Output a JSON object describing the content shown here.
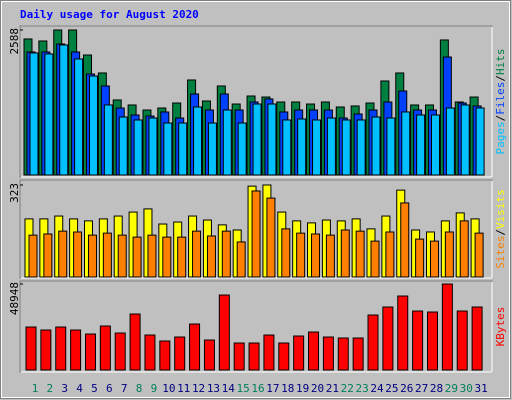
{
  "title": "Daily usage for August 2020",
  "legend_separator": "/",
  "chart_data": [
    {
      "type": "bar",
      "ylim": [
        0,
        2588
      ],
      "yticks": [
        2588
      ],
      "series": [
        {
          "name": "Hits",
          "color": "#008040",
          "values": [
            2428,
            2392,
            2588,
            2588,
            2142,
            1821,
            1339,
            1250,
            1160,
            1196,
            1285,
            1696,
            1321,
            1589,
            1267,
            1410,
            1392,
            1303,
            1303,
            1267,
            1303,
            1214,
            1232,
            1285,
            1678,
            1821,
            1250,
            1250,
            2410,
            1303,
            1392
          ]
        },
        {
          "name": "Files",
          "color": "#0040ff",
          "values": [
            2196,
            2196,
            2338,
            2196,
            1803,
            1589,
            1196,
            1071,
            1053,
            1125,
            1017,
            1446,
            1160,
            1446,
            1160,
            1303,
            1357,
            1125,
            1160,
            1160,
            1160,
            1017,
            1089,
            1160,
            1303,
            1499,
            1160,
            1160,
            2106,
            1285,
            1232
          ]
        },
        {
          "name": "Pages",
          "color": "#00c0ff",
          "values": [
            2178,
            2160,
            2321,
            2071,
            1767,
            1250,
            1035,
            982,
            1017,
            928,
            928,
            1214,
            928,
            1160,
            928,
            1267,
            1267,
            982,
            1000,
            982,
            1017,
            982,
            982,
            1035,
            1017,
            1125,
            1071,
            1071,
            1196,
            1250,
            1196
          ]
        }
      ]
    },
    {
      "type": "bar",
      "ylim": [
        0,
        323
      ],
      "yticks": [
        323
      ],
      "series": [
        {
          "name": "Visits",
          "color": "#ffff00",
          "values": [
            204,
            204,
            214,
            204,
            197,
            204,
            214,
            228,
            239,
            186,
            193,
            214,
            200,
            183,
            165,
            319,
            323,
            228,
            197,
            190,
            200,
            197,
            204,
            169,
            214,
            305,
            165,
            158,
            197,
            225,
            204
          ]
        },
        {
          "name": "Sites",
          "color": "#ff8000",
          "values": [
            147,
            151,
            161,
            158,
            147,
            154,
            147,
            140,
            147,
            140,
            140,
            161,
            144,
            161,
            123,
            302,
            277,
            169,
            154,
            151,
            147,
            165,
            161,
            126,
            158,
            260,
            133,
            126,
            158,
            197,
            154
          ]
        }
      ]
    },
    {
      "type": "bar",
      "ylim": [
        0,
        48948
      ],
      "yticks": [
        48948
      ],
      "categories": [
        "1",
        "2",
        "3",
        "4",
        "5",
        "6",
        "7",
        "8",
        "9",
        "10",
        "11",
        "12",
        "13",
        "14",
        "15",
        "16",
        "17",
        "18",
        "19",
        "20",
        "21",
        "22",
        "23",
        "24",
        "25",
        "26",
        "27",
        "28",
        "29",
        "30",
        "31"
      ],
      "category_colors": [
        "#00805c",
        "#00805c",
        "#000080",
        "#000080",
        "#000080",
        "#000080",
        "#000080",
        "#00805c",
        "#00805c",
        "#000080",
        "#000080",
        "#000080",
        "#000080",
        "#000080",
        "#00805c",
        "#00805c",
        "#000080",
        "#000080",
        "#000080",
        "#000080",
        "#000080",
        "#00805c",
        "#00805c",
        "#000080",
        "#000080",
        "#000080",
        "#000080",
        "#000080",
        "#00805c",
        "#00805c",
        "#000080"
      ],
      "series": [
        {
          "name": "KBytes",
          "color": "#ff0000",
          "values": [
            24467,
            22760,
            24467,
            22760,
            20484,
            25036,
            21053,
            31864,
            19915,
            16501,
            18777,
            26174,
            17070,
            42675,
            15363,
            15363,
            19915,
            15363,
            19346,
            21622,
            18777,
            18208,
            18208,
            31295,
            35847,
            42106,
            33571,
            33002,
            48948,
            33571,
            35847
          ]
        }
      ]
    }
  ]
}
